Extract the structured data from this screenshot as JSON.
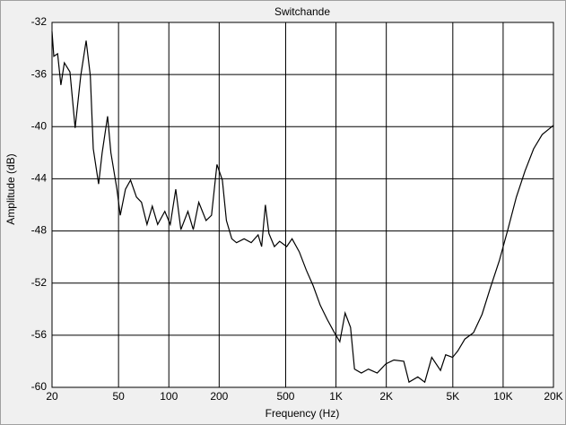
{
  "chart_data": {
    "type": "line",
    "title": "Switchande",
    "xlabel": "Frequency (Hz)",
    "ylabel": "Amplitude (dB)",
    "xscale": "log",
    "grid": true,
    "color": "#000000",
    "x": [
      20,
      20.5,
      21.6,
      22.6,
      23.7,
      25.6,
      27.5,
      29.7,
      32,
      33.9,
      35.3,
      38,
      39.9,
      43,
      45,
      48.9,
      51.2,
      55,
      59,
      64,
      68.6,
      74,
      79.6,
      85.7,
      94.6,
      102,
      110,
      118,
      130,
      140,
      151,
      167,
      180,
      194,
      209,
      221,
      238,
      254,
      282,
      311,
      342,
      359,
      378,
      397,
      428,
      460,
      507,
      546,
      603,
      664,
      730,
      805,
      887,
      978,
      1054,
      1134,
      1222,
      1291,
      1418,
      1563,
      1764,
      1987,
      2221,
      2544,
      2735,
      3087,
      3398,
      3740,
      4220,
      4532,
      4985,
      5360,
      5900,
      6650,
      7480,
      8420,
      9480,
      10670,
      12000,
      13520,
      15220,
      17130,
      20000
    ],
    "values": [
      -32.7,
      -34.6,
      -34.4,
      -36.8,
      -35.1,
      -35.8,
      -40.1,
      -36.1,
      -33.4,
      -36.1,
      -41.7,
      -44.4,
      -42,
      -39.2,
      -42,
      -44.8,
      -46.8,
      -44.8,
      -44.1,
      -45.4,
      -45.8,
      -47.5,
      -46.1,
      -47.5,
      -46.5,
      -47.5,
      -44.8,
      -47.9,
      -46.5,
      -47.9,
      -45.8,
      -47.2,
      -46.8,
      -42.9,
      -44.1,
      -47.2,
      -48.6,
      -48.9,
      -48.6,
      -48.9,
      -48.3,
      -49.2,
      -46,
      -48.2,
      -49.2,
      -48.8,
      -49.2,
      -48.6,
      -49.6,
      -51,
      -52.2,
      -53.7,
      -54.8,
      -55.8,
      -56.5,
      -54.3,
      -55.4,
      -58.6,
      -58.9,
      -58.6,
      -58.9,
      -58.2,
      -57.9,
      -58,
      -59.6,
      -59.2,
      -59.6,
      -57.7,
      -58.7,
      -57.5,
      -57.7,
      -57.2,
      -56.3,
      -55.8,
      -54.4,
      -52.3,
      -50.3,
      -47.9,
      -45.4,
      -43.4,
      -41.7,
      -40.6,
      -39.9
    ],
    "xlim": [
      20,
      20000
    ],
    "xticks": [
      20,
      50,
      100,
      200,
      500,
      {
        "value": 1000,
        "label": "1K"
      },
      {
        "value": 2000,
        "label": "2K"
      },
      {
        "value": 5000,
        "label": "5K"
      },
      {
        "value": 10000,
        "label": "10K"
      },
      {
        "value": 20000,
        "label": "20K"
      }
    ],
    "ylim": [
      -60,
      -32
    ],
    "yticks": [
      -32,
      -36,
      -40,
      -44,
      -48,
      -52,
      -56,
      -60
    ]
  }
}
